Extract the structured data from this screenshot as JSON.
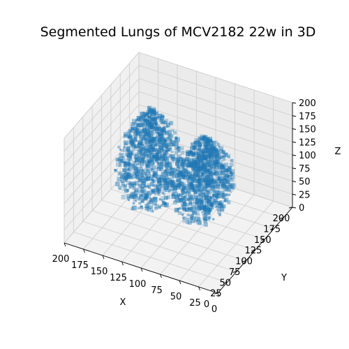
{
  "chart_data": {
    "type": "scatter",
    "projection": "3d",
    "title": "Segmented Lungs of MCV2182 22w in 3D",
    "xlabel": "X",
    "ylabel": "Y",
    "zlabel": "Z",
    "xlim": [
      0,
      200
    ],
    "ylim": [
      0,
      200
    ],
    "zlim": [
      0,
      200
    ],
    "x_ticks": [
      0,
      25,
      50,
      75,
      100,
      125,
      150,
      175,
      200
    ],
    "y_ticks": [
      0,
      25,
      50,
      75,
      100,
      125,
      150,
      175,
      200
    ],
    "z_ticks": [
      0,
      25,
      50,
      75,
      100,
      125,
      150,
      175,
      200
    ],
    "x_tick_labels": [
      "0",
      "25",
      "50",
      "75",
      "100",
      "125",
      "150",
      "175",
      "200"
    ],
    "y_tick_labels": [
      "0",
      "25",
      "50",
      "75",
      "100",
      "125",
      "150",
      "175",
      "200"
    ],
    "z_tick_labels": [
      "0",
      "25",
      "50",
      "75",
      "100",
      "125",
      "150",
      "175",
      "200"
    ],
    "grid": true,
    "series": [
      {
        "name": "segmented lungs",
        "color": "#1f77b4",
        "alpha": 0.7,
        "description_points": "voxel cloud of the two lungs",
        "lobes": [
          {
            "name": "left-lung",
            "x_range": [
              40,
              110
            ],
            "y_range": [
              60,
              170
            ],
            "z_range": [
              10,
              170
            ]
          },
          {
            "name": "right-lung",
            "x_range": [
              100,
              180
            ],
            "y_range": [
              50,
              160
            ],
            "z_range": [
              10,
              200
            ]
          }
        ]
      }
    ]
  }
}
